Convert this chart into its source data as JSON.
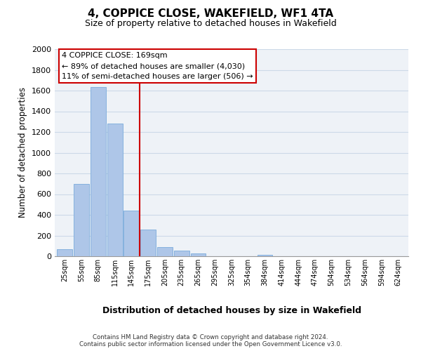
{
  "title": "4, COPPICE CLOSE, WAKEFIELD, WF1 4TA",
  "subtitle": "Size of property relative to detached houses in Wakefield",
  "xlabel": "Distribution of detached houses by size in Wakefield",
  "ylabel": "Number of detached properties",
  "bar_labels": [
    "25sqm",
    "55sqm",
    "85sqm",
    "115sqm",
    "145sqm",
    "175sqm",
    "205sqm",
    "235sqm",
    "265sqm",
    "295sqm",
    "325sqm",
    "354sqm",
    "384sqm",
    "414sqm",
    "444sqm",
    "474sqm",
    "504sqm",
    "534sqm",
    "564sqm",
    "594sqm",
    "624sqm"
  ],
  "bar_values": [
    68,
    695,
    1635,
    1280,
    440,
    255,
    90,
    52,
    28,
    0,
    0,
    0,
    15,
    0,
    0,
    0,
    0,
    0,
    0,
    0,
    0
  ],
  "bar_color": "#aec6e8",
  "bar_edge_color": "#7aabdb",
  "vline_color": "#cc0000",
  "box_edge_color": "#cc0000",
  "annotation_line1": "4 COPPICE CLOSE: 169sqm",
  "annotation_line2": "← 89% of detached houses are smaller (4,030)",
  "annotation_line3": "11% of semi-detached houses are larger (506) →",
  "ylim": [
    0,
    2000
  ],
  "yticks": [
    0,
    200,
    400,
    600,
    800,
    1000,
    1200,
    1400,
    1600,
    1800,
    2000
  ],
  "footnote": "Contains HM Land Registry data © Crown copyright and database right 2024.\nContains public sector information licensed under the Open Government Licence v3.0.",
  "grid_color": "#ccd9e8",
  "background_color": "#eef2f7"
}
